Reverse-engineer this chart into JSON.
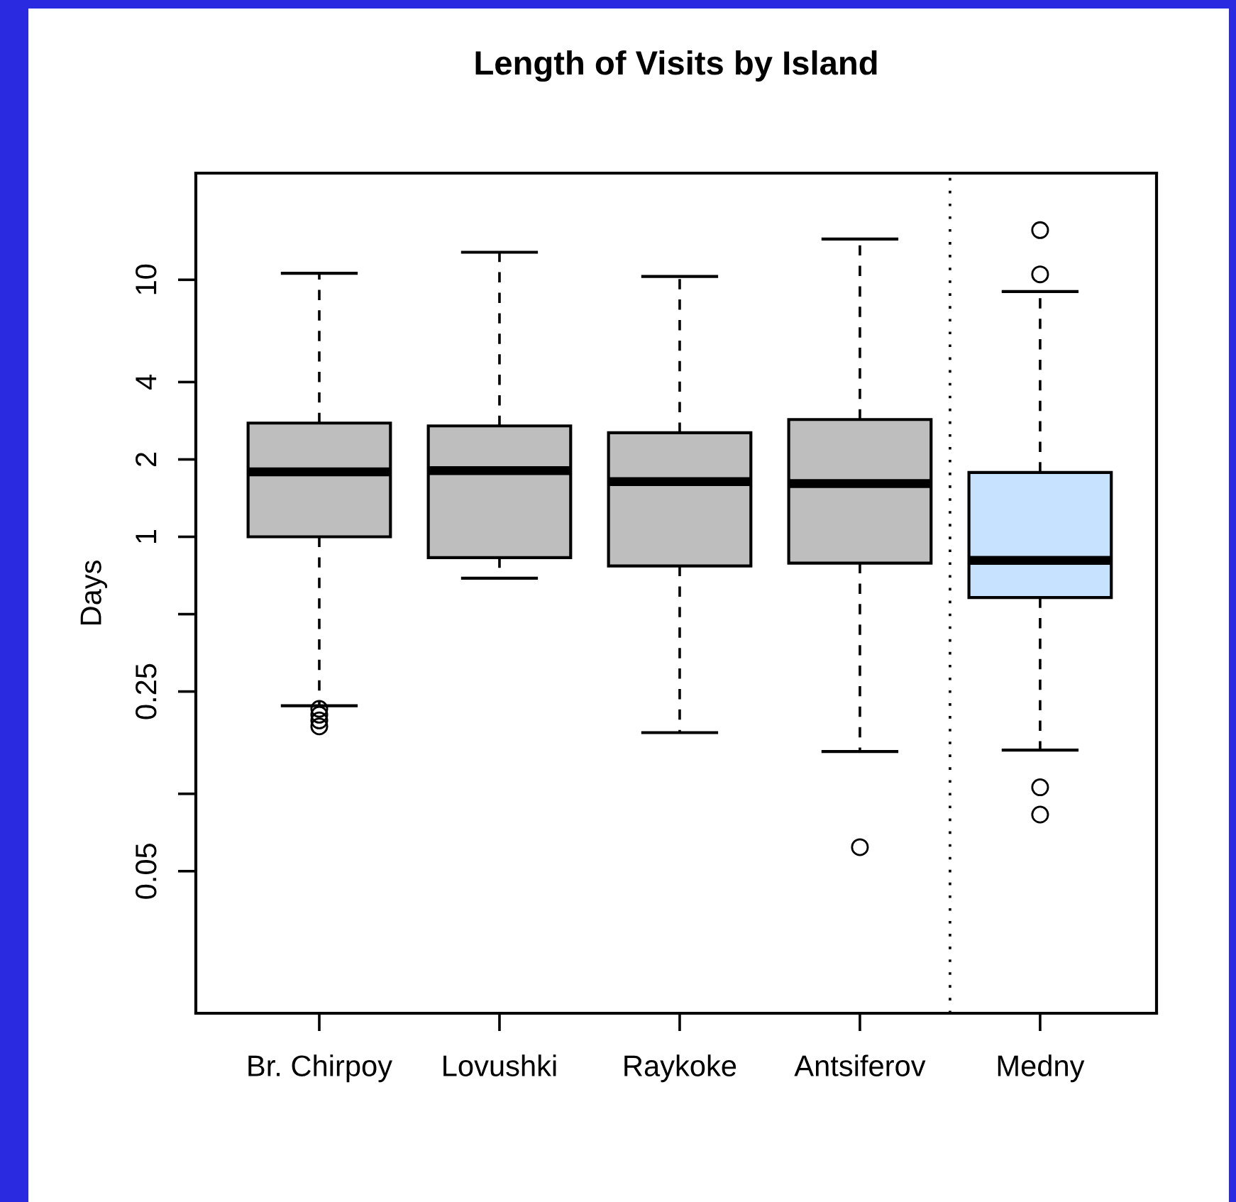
{
  "chart_data": {
    "type": "box",
    "title": "Length of Visits by Island",
    "ylabel": "Days",
    "categories": [
      "Br. Chirpoy",
      "Lovushki",
      "Raykoke",
      "Antsiferov",
      "Medny"
    ],
    "colors": [
      "#bebebe",
      "#bebebe",
      "#bebebe",
      "#bebebe",
      "#c6e2ff"
    ],
    "boxes": [
      {
        "low": 0.22,
        "q1": 1.0,
        "median": 1.79,
        "q3": 2.77,
        "high": 10.6,
        "outliers": [
          0.214,
          0.203,
          0.193,
          0.183
        ]
      },
      {
        "low": 0.69,
        "q1": 0.83,
        "median": 1.81,
        "q3": 2.7,
        "high": 12.8
      },
      {
        "low": 0.173,
        "q1": 0.77,
        "median": 1.64,
        "q3": 2.54,
        "high": 10.3
      },
      {
        "low": 0.146,
        "q1": 0.79,
        "median": 1.61,
        "q3": 2.86,
        "high": 14.4,
        "outliers": [
          0.062
        ]
      },
      {
        "low": 0.148,
        "q1": 0.58,
        "median": 0.81,
        "q3": 1.78,
        "high": 9.0,
        "outliers": [
          15.6,
          10.5,
          0.106,
          0.083
        ]
      }
    ],
    "log": "y",
    "ylim": [
      0.014,
      26
    ],
    "yticks": [
      0.05,
      {
        "value": 0.1,
        "label": null
      },
      0.25,
      {
        "value": 0.5,
        "label": null
      },
      1,
      2,
      4,
      10
    ],
    "grid": false,
    "legend": false
  }
}
